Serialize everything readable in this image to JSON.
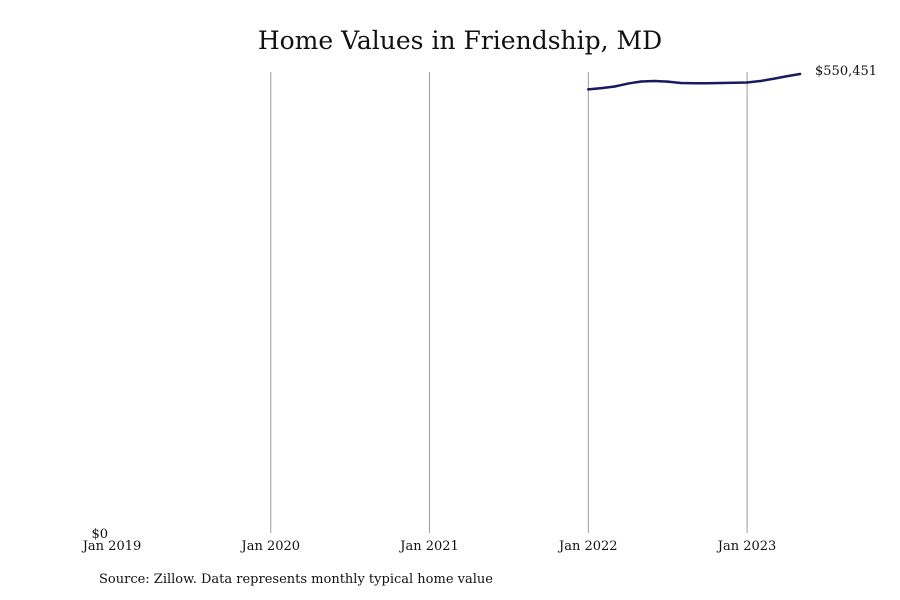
{
  "chart_data": {
    "type": "line",
    "title": "Home Values in Friendship, MD",
    "xlabel": "",
    "ylabel": "",
    "x_ticks": [
      "Jan 2019",
      "Jan 2020",
      "Jan 2021",
      "Jan 2022",
      "Jan 2023"
    ],
    "x_domain": [
      "2019-01",
      "2023-05"
    ],
    "y_ticks": [
      "$0"
    ],
    "ylim": [
      0,
      550451
    ],
    "grid": "vertical",
    "end_label": "$550,451",
    "series": [
      {
        "color": "#1a1a5e",
        "points": [
          {
            "x": "2022-01",
            "y": 532000
          },
          {
            "x": "2022-02",
            "y": 533500
          },
          {
            "x": "2022-03",
            "y": 535500
          },
          {
            "x": "2022-04",
            "y": 539000
          },
          {
            "x": "2022-05",
            "y": 541500
          },
          {
            "x": "2022-06",
            "y": 542000
          },
          {
            "x": "2022-07",
            "y": 541300
          },
          {
            "x": "2022-08",
            "y": 539600
          },
          {
            "x": "2022-09",
            "y": 539300
          },
          {
            "x": "2022-10",
            "y": 539300
          },
          {
            "x": "2022-11",
            "y": 539600
          },
          {
            "x": "2022-12",
            "y": 540000
          },
          {
            "x": "2023-01",
            "y": 540300
          },
          {
            "x": "2023-02",
            "y": 542000
          },
          {
            "x": "2023-03",
            "y": 544800
          },
          {
            "x": "2023-04",
            "y": 547800
          },
          {
            "x": "2023-05",
            "y": 550451
          }
        ]
      }
    ]
  },
  "source_note": "Source: Zillow. Data represents monthly typical home value"
}
